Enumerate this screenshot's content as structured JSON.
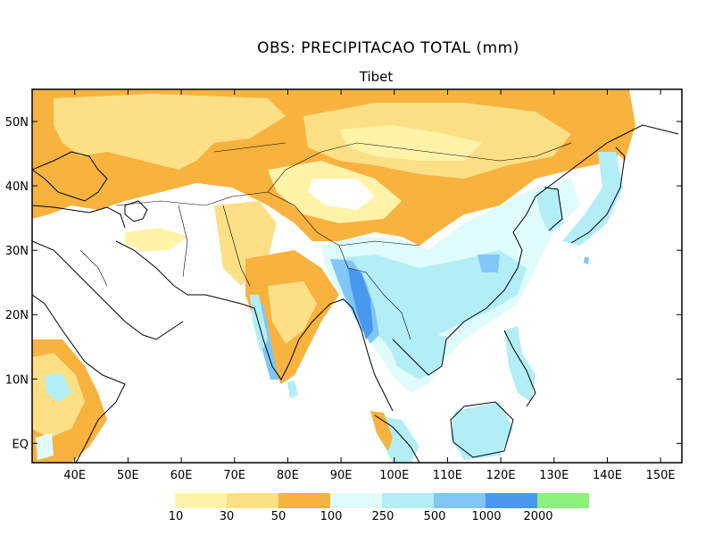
{
  "title": "OBS: PRECIPITACAO TOTAL (mm)",
  "subtitle": "Tibet",
  "map": {
    "lon_range": [
      32,
      154
    ],
    "lat_range": [
      -3,
      55
    ],
    "lon_ticks": [
      "40E",
      "50E",
      "60E",
      "70E",
      "80E",
      "90E",
      "100E",
      "110E",
      "120E",
      "130E",
      "140E",
      "150E"
    ],
    "lat_ticks": [
      "EQ",
      "10N",
      "20N",
      "30N",
      "40N",
      "50N"
    ]
  },
  "colors": {
    "c10": "#fff3a8",
    "c30": "#fde085",
    "c50": "#f8b23e",
    "c100": "#e0fbfb",
    "c250": "#b3eef7",
    "c500": "#80c6f6",
    "c1000": "#4a97ee",
    "c2000": "#8cf07c"
  },
  "legend": {
    "labels": [
      "10",
      "30",
      "50",
      "100",
      "250",
      "500",
      "1000",
      "2000"
    ]
  }
}
